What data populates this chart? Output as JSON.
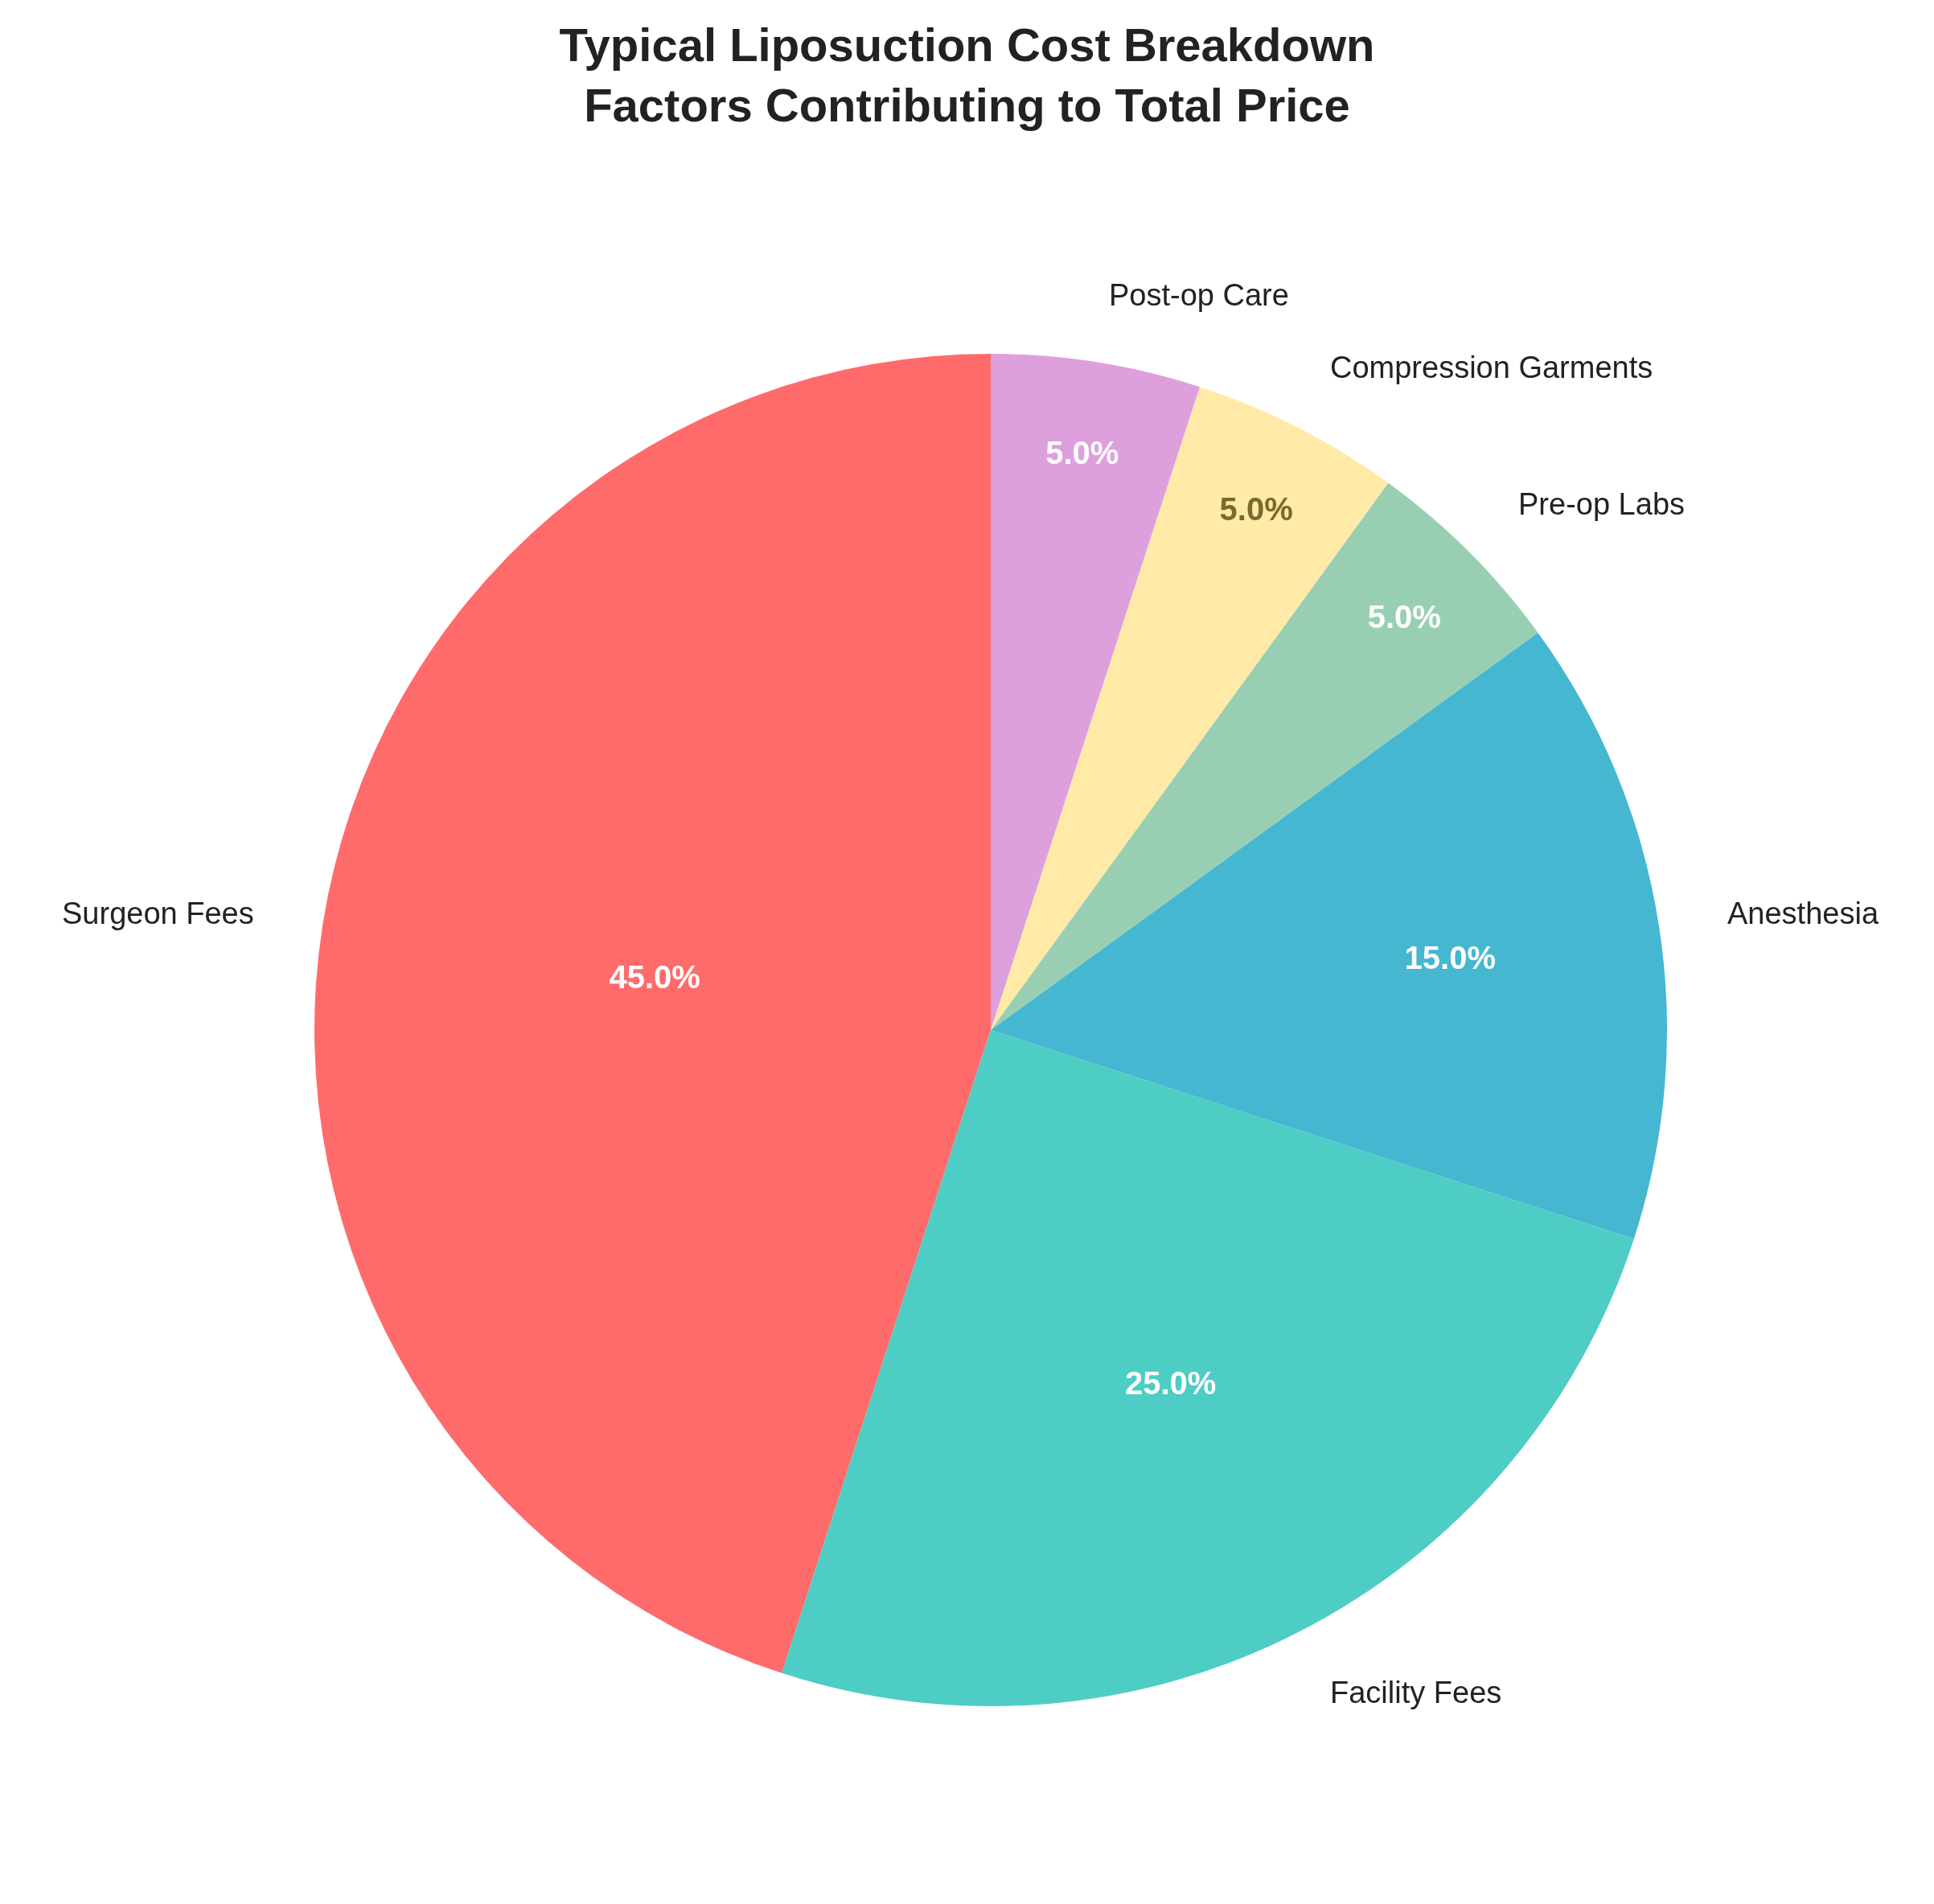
{
  "chart_data": {
    "type": "pie",
    "title": "Typical Liposuction Cost Breakdown\nFactors Contributing to Total Price",
    "categories": [
      "Surgeon Fees",
      "Facility Fees",
      "Anesthesia",
      "Pre-op Labs",
      "Compression Garments",
      "Post-op Care"
    ],
    "values": [
      45,
      25,
      15,
      5,
      5,
      5
    ],
    "value_labels": [
      "45.0%",
      "25.0%",
      "15.0%",
      "5.0%",
      "5.0%",
      "5.0%"
    ],
    "colors": [
      "#ff6b6b",
      "#4ecdc4",
      "#45b7d1",
      "#98cfb3",
      "#ffeaa7",
      "#dda0dd"
    ]
  }
}
